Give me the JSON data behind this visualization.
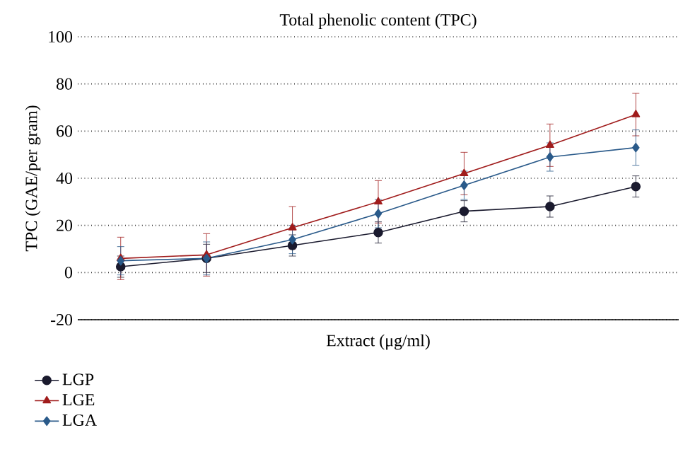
{
  "chart_data": {
    "type": "line",
    "title": "Total phenolic content (TPC)",
    "xlabel": "Extract (μg/ml)",
    "ylabel": "TPC (GAE/per gram)",
    "categories": [
      null,
      null,
      null,
      null,
      null,
      null,
      null
    ],
    "series": [
      {
        "name": "LGP",
        "color": "#1a1a2e",
        "marker": "circle",
        "values": [
          2.5,
          6,
          11.5,
          17,
          26,
          28,
          36.5
        ],
        "errors": [
          4.5,
          6,
          4.5,
          4.5,
          4.5,
          4.5,
          4.5
        ]
      },
      {
        "name": "LGE",
        "color": "#a01c1c",
        "marker": "triangle",
        "values": [
          6,
          7.5,
          19,
          30,
          42,
          54,
          67
        ],
        "errors": [
          9,
          9,
          9,
          9,
          9,
          9,
          9
        ]
      },
      {
        "name": "LGA",
        "color": "#2a5a8a",
        "marker": "diamond",
        "values": [
          5,
          6,
          14,
          25,
          37,
          49,
          53
        ],
        "errors": [
          6,
          7,
          6,
          6,
          6,
          6,
          7.5
        ]
      }
    ],
    "ylim": [
      -20,
      100
    ],
    "yticks": [
      -20,
      0,
      20,
      40,
      60,
      80,
      100
    ],
    "grid": "y",
    "legend": "bottom left",
    "tick_labels": "y",
    "line_style": "solid"
  }
}
